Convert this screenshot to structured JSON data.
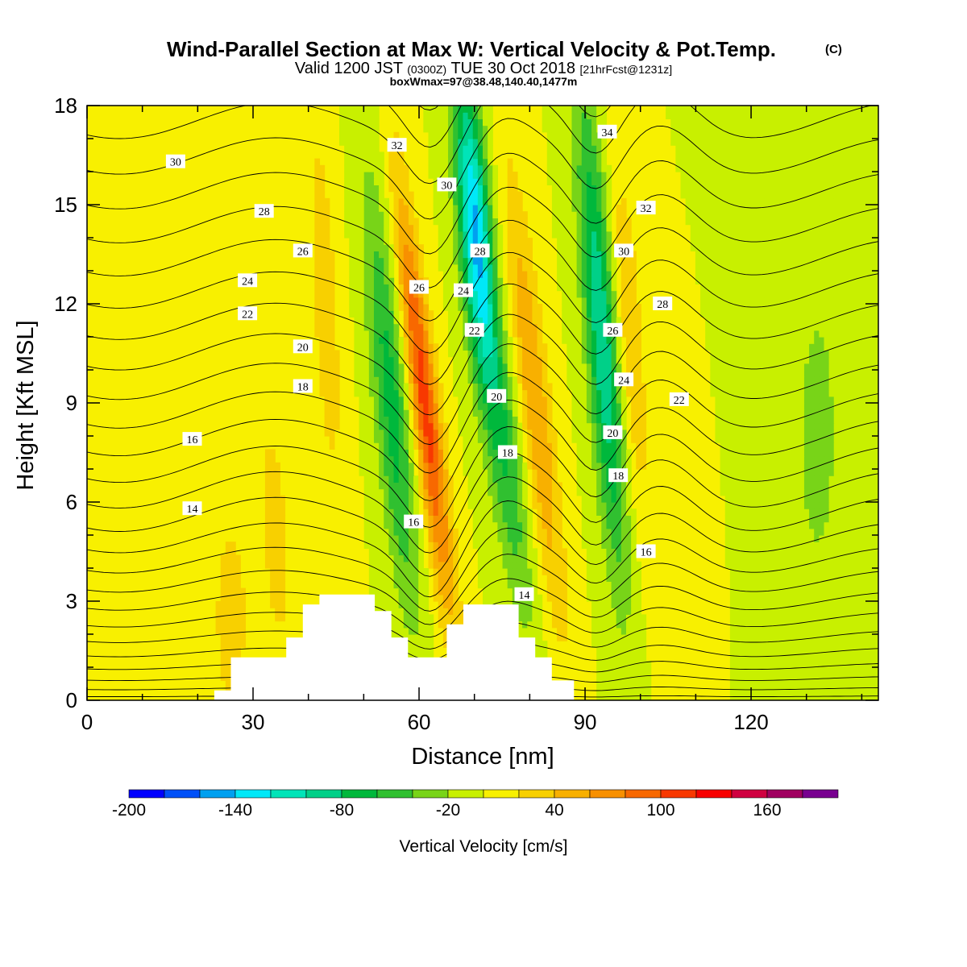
{
  "chart_data": {
    "type": "heatmap",
    "title": "Wind-Parallel Section at Max W: Vertical Velocity & Pot.Temp.",
    "copyright_mark": "(C)",
    "subtitle_parts": [
      "Valid 1200 JST",
      "(0300Z)",
      "TUE 30 Oct 2018",
      "[21hrFcst@1231z]"
    ],
    "subtitle2": "boxWmax=97@38.48,140.40,1477m",
    "xlabel": "Distance [nm]",
    "ylabel": "Height [Kft MSL]",
    "xlim": [
      0,
      143
    ],
    "ylim": [
      0,
      18
    ],
    "x_ticks": [
      0,
      30,
      60,
      90,
      120
    ],
    "y_ticks": [
      0,
      3,
      6,
      9,
      12,
      15,
      18
    ],
    "colorbar": {
      "label": "Vertical Velocity [cm/s]",
      "min": -200,
      "max": 200,
      "step": 20,
      "tick_values": [
        -200,
        -140,
        -80,
        -20,
        40,
        100,
        160
      ],
      "tick_labels": [
        "-200",
        "-140",
        "-80",
        "-20",
        "40",
        "100",
        "160"
      ],
      "colors": [
        "#0000ff",
        "#0050f8",
        "#00a0f0",
        "#00e8f8",
        "#00e4b8",
        "#00d088",
        "#00b83c",
        "#30c030",
        "#78d418",
        "#c8f000",
        "#f8f000",
        "#f8d000",
        "#f8b000",
        "#f89000",
        "#f86800",
        "#f83800",
        "#f80000",
        "#d00040",
        "#a00060",
        "#780090"
      ]
    },
    "terrain_profile": [
      [
        0,
        0
      ],
      [
        23,
        0
      ],
      [
        23,
        0.3
      ],
      [
        26,
        0.3
      ],
      [
        26,
        1.3
      ],
      [
        36,
        1.3
      ],
      [
        36,
        1.9
      ],
      [
        39,
        1.9
      ],
      [
        39,
        2.9
      ],
      [
        42,
        2.9
      ],
      [
        42,
        3.2
      ],
      [
        52,
        3.2
      ],
      [
        52,
        2.7
      ],
      [
        55,
        2.7
      ],
      [
        55,
        1.9
      ],
      [
        58,
        1.9
      ],
      [
        58,
        1.3
      ],
      [
        65,
        1.3
      ],
      [
        65,
        2.3
      ],
      [
        68,
        2.3
      ],
      [
        68,
        2.9
      ],
      [
        78,
        2.9
      ],
      [
        78,
        1.9
      ],
      [
        81,
        1.9
      ],
      [
        81,
        1.3
      ],
      [
        84,
        1.3
      ],
      [
        84,
        0.6
      ],
      [
        88,
        0.6
      ],
      [
        88,
        0
      ],
      [
        143,
        0
      ]
    ],
    "w_features": [
      {
        "x": 55,
        "z": 9,
        "sx": 2.2,
        "sz": 4.5,
        "tilt": -0.55,
        "value": -70
      },
      {
        "x": 61,
        "z": 9,
        "sx": 1.8,
        "sz": 4.5,
        "tilt": -0.7,
        "value": 110
      },
      {
        "x": 70,
        "z": 14.5,
        "sx": 2.0,
        "sz": 3.2,
        "tilt": -0.45,
        "value": -130
      },
      {
        "x": 75,
        "z": 8,
        "sx": 2.2,
        "sz": 4.0,
        "tilt": -0.75,
        "value": -60
      },
      {
        "x": 81,
        "z": 9,
        "sx": 2.0,
        "sz": 5.0,
        "tilt": -0.65,
        "value": 60
      },
      {
        "x": 93,
        "z": 11,
        "sx": 2.0,
        "sz": 5.0,
        "tilt": -0.45,
        "value": -100
      },
      {
        "x": 98,
        "z": 11,
        "sx": 1.8,
        "sz": 4.0,
        "tilt": -0.4,
        "value": 40
      },
      {
        "x": 34,
        "z": 5,
        "sx": 2.0,
        "sz": 3.0,
        "tilt": -0.3,
        "value": 30
      },
      {
        "x": 26,
        "z": 2.5,
        "sx": 2.0,
        "sz": 2.0,
        "tilt": 0.0,
        "value": 40
      },
      {
        "x": 43,
        "z": 12,
        "sx": 2.0,
        "sz": 5.0,
        "tilt": -0.3,
        "value": 30
      },
      {
        "x": 132,
        "z": 8,
        "sx": 3.0,
        "sz": 3.5,
        "tilt": 0.0,
        "value": -30
      },
      {
        "x": 118,
        "z": 12,
        "sx": 3.0,
        "sz": 4.5,
        "tilt": 0.0,
        "value": -15
      },
      {
        "x": 110,
        "z": 5,
        "sx": 3.0,
        "sz": 3.0,
        "tilt": 0.0,
        "value": 15
      }
    ],
    "theta_contour_levels": [
      14,
      16,
      18,
      20,
      22,
      24,
      26,
      28,
      30,
      32,
      34
    ],
    "theta_contour_labels": [
      {
        "text": "30",
        "x": 16,
        "z": 16.3
      },
      {
        "text": "28",
        "x": 32,
        "z": 14.8
      },
      {
        "text": "26",
        "x": 39,
        "z": 13.6
      },
      {
        "text": "24",
        "x": 29,
        "z": 12.7
      },
      {
        "text": "22",
        "x": 29,
        "z": 11.7
      },
      {
        "text": "20",
        "x": 39,
        "z": 10.7
      },
      {
        "text": "18",
        "x": 39,
        "z": 9.5
      },
      {
        "text": "16",
        "x": 19,
        "z": 7.9
      },
      {
        "text": "14",
        "x": 19,
        "z": 5.8
      },
      {
        "text": "32",
        "x": 56,
        "z": 16.8
      },
      {
        "text": "30",
        "x": 65,
        "z": 15.6
      },
      {
        "text": "26",
        "x": 60,
        "z": 12.5
      },
      {
        "text": "24",
        "x": 68,
        "z": 12.4
      },
      {
        "text": "28",
        "x": 71,
        "z": 13.6
      },
      {
        "text": "22",
        "x": 70,
        "z": 11.2
      },
      {
        "text": "20",
        "x": 74,
        "z": 9.2
      },
      {
        "text": "18",
        "x": 76,
        "z": 7.5
      },
      {
        "text": "16",
        "x": 59,
        "z": 5.4
      },
      {
        "text": "14",
        "x": 79,
        "z": 3.2
      },
      {
        "text": "34",
        "x": 94,
        "z": 17.2
      },
      {
        "text": "32",
        "x": 101,
        "z": 14.9
      },
      {
        "text": "30",
        "x": 97,
        "z": 13.6
      },
      {
        "text": "28",
        "x": 104,
        "z": 12.0
      },
      {
        "text": "26",
        "x": 95,
        "z": 11.2
      },
      {
        "text": "24",
        "x": 97,
        "z": 9.7
      },
      {
        "text": "22",
        "x": 107,
        "z": 9.1
      },
      {
        "text": "20",
        "x": 95,
        "z": 8.1
      },
      {
        "text": "18",
        "x": 96,
        "z": 6.8
      },
      {
        "text": "16",
        "x": 101,
        "z": 4.5
      }
    ]
  }
}
